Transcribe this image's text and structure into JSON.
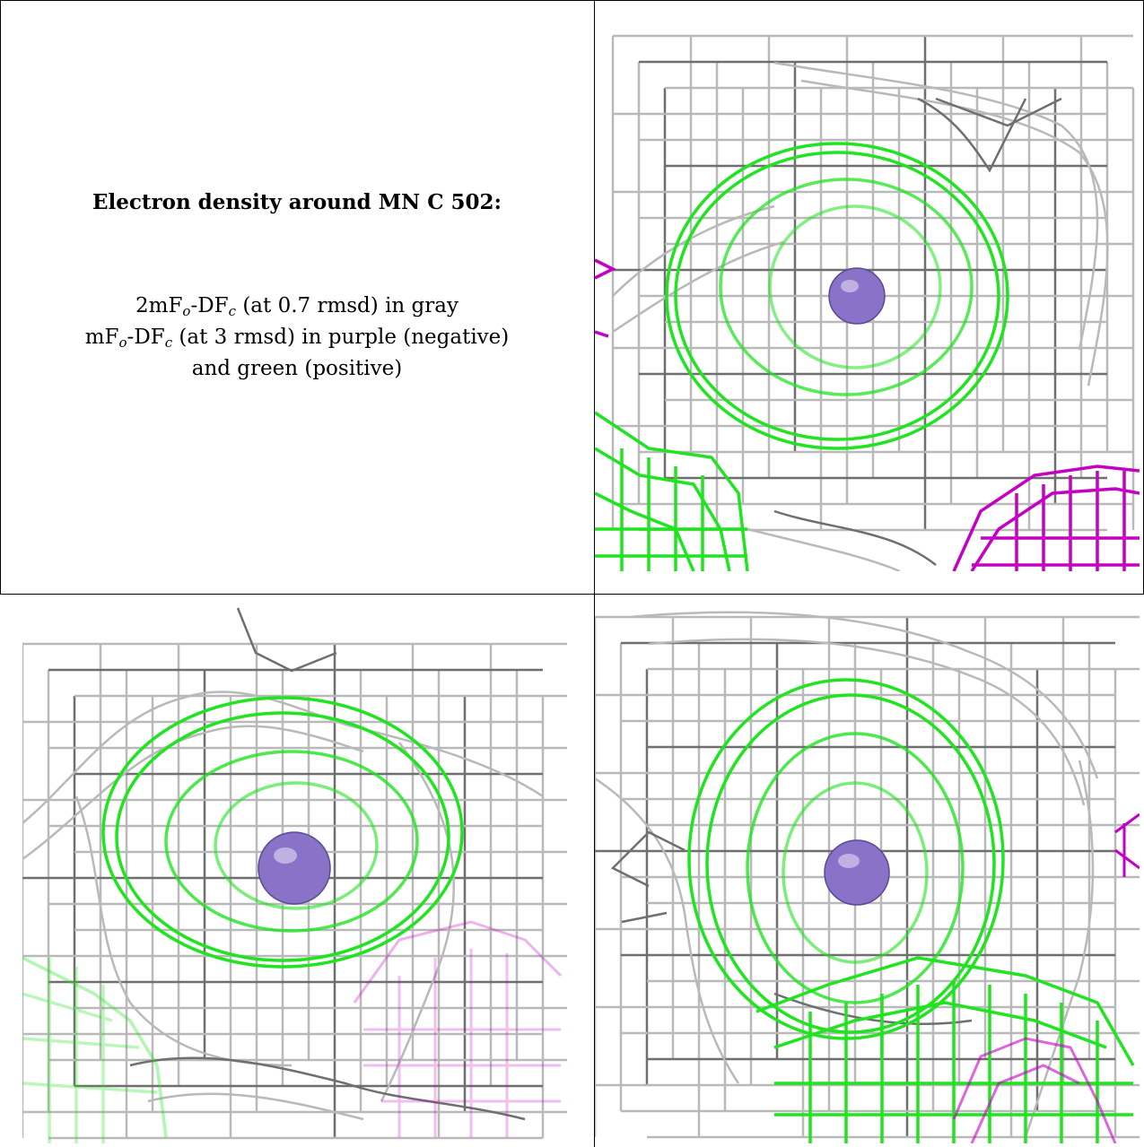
{
  "caption": {
    "title": "Electron density around MN C 502:",
    "line1": {
      "a": "2mF",
      "b": "o",
      "c": "-DF",
      "d": "c",
      "e": " (at 0.7 rmsd) in gray"
    },
    "line2": {
      "a": "mF",
      "b": "o",
      "c": "-DF",
      "d": "c",
      "e": " (at 3 rmsd) in purple (negative)"
    },
    "line3": "and green (positive)"
  },
  "colors": {
    "gray_mesh": "#b9b9b9",
    "dark_mesh": "#6f6f6f",
    "green_mesh": "#1fe41f",
    "purple_mesh": "#c400c4",
    "atom": "#8a72c8"
  },
  "panels": [
    {
      "id": "top-right",
      "atom_label": "MN atom"
    },
    {
      "id": "bottom-left",
      "atom_label": "MN atom"
    },
    {
      "id": "bottom-right",
      "atom_label": "MN atom"
    }
  ]
}
